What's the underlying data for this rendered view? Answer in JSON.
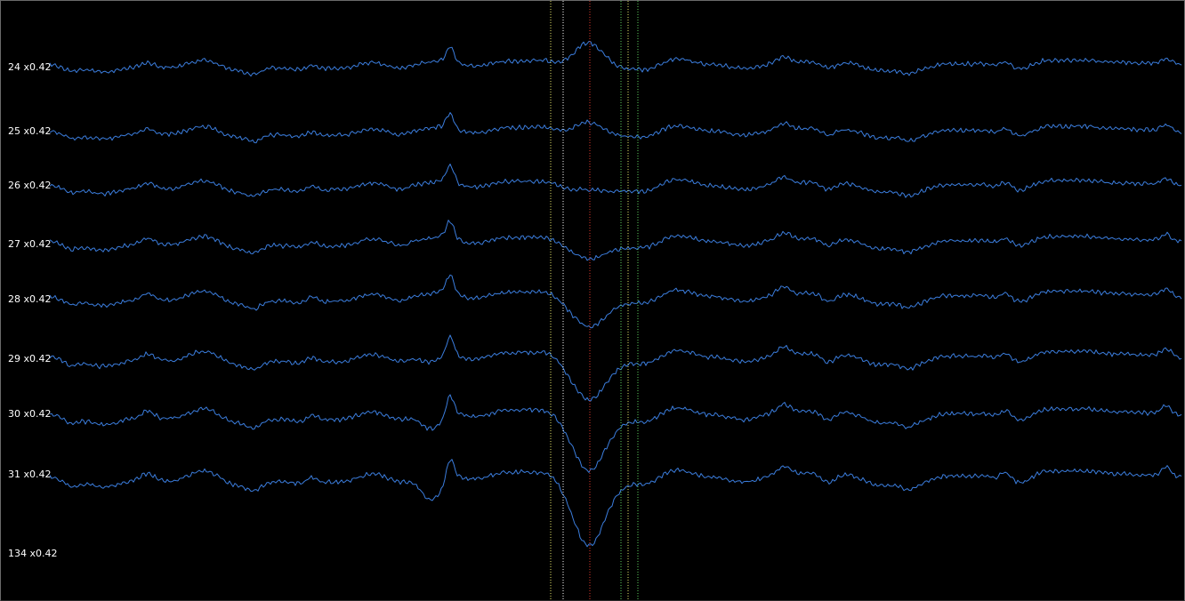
{
  "chart_data": {
    "type": "line",
    "title": "",
    "xlabel": "",
    "ylabel": "",
    "grid": false,
    "legend": "none",
    "trace_color": "#3b7ddd",
    "background_color": "#000000",
    "label_color": "#ffffff",
    "channels": [
      {
        "name": "24",
        "scale": "x0.42"
      },
      {
        "name": "25",
        "scale": "x0.42"
      },
      {
        "name": "26",
        "scale": "x0.42"
      },
      {
        "name": "27",
        "scale": "x0.42"
      },
      {
        "name": "28",
        "scale": "x0.42"
      },
      {
        "name": "29",
        "scale": "x0.42"
      },
      {
        "name": "30",
        "scale": "x0.42"
      },
      {
        "name": "31",
        "scale": "x0.42"
      },
      {
        "name": "134",
        "scale": "x0.42"
      }
    ],
    "cursors": [
      {
        "color": "#e8e86a",
        "style": "dotted"
      },
      {
        "color": "#ffffff",
        "style": "dotted"
      },
      {
        "color": "#e0392b",
        "style": "dotted"
      },
      {
        "color": "#5fd35f",
        "style": "dotted"
      },
      {
        "color": "#e8e86a",
        "style": "dotted"
      },
      {
        "color": "#5fd35f",
        "style": "dotted"
      }
    ]
  }
}
